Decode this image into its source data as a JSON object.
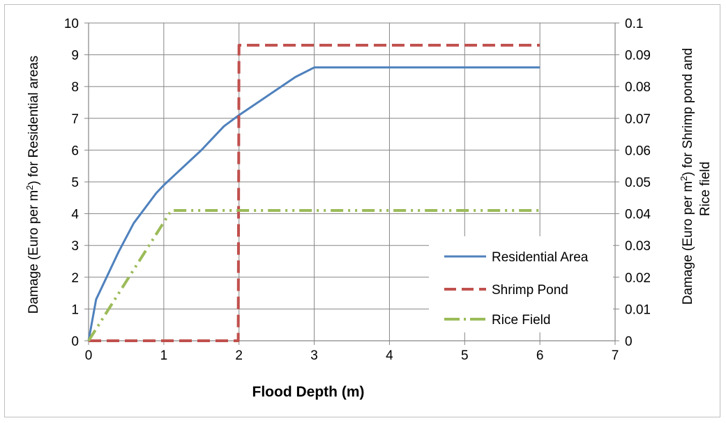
{
  "chart_data": {
    "type": "line",
    "xlabel": "Flood Depth (m)",
    "ylabel_left_parts": [
      "Damage (Euro per m",
      "2",
      ") for Residential areas"
    ],
    "ylabel_right_line1_parts": [
      "Damage (Euro per m",
      "2",
      ") for Shrimp pond and"
    ],
    "ylabel_right_line2": "Rice field",
    "xlim": [
      0,
      7
    ],
    "ylim_left": [
      0,
      10
    ],
    "ylim_right": [
      0,
      0.1
    ],
    "x_ticks": [
      0,
      1,
      2,
      3,
      4,
      5,
      6,
      7
    ],
    "y_left_ticks": [
      0,
      1,
      2,
      3,
      4,
      5,
      6,
      7,
      8,
      9,
      10
    ],
    "y_right_ticks": [
      "0",
      "0.01",
      "0.02",
      "0.03",
      "0.04",
      "0.05",
      "0.06",
      "0.07",
      "0.08",
      "0.09",
      "0.1"
    ],
    "grid": true,
    "legend_position": "bottom-right",
    "series": [
      {
        "name": "Residential Area",
        "axis": "left",
        "color": "#4f81bd",
        "style": "solid",
        "x": [
          0,
          0.1,
          0.4,
          0.6,
          0.9,
          1.0,
          1.5,
          1.8,
          2.0,
          2.5,
          2.75,
          3.0,
          6.0
        ],
        "y": [
          0,
          1.3,
          2.8,
          3.7,
          4.65,
          4.9,
          6.0,
          6.75,
          7.1,
          7.9,
          8.3,
          8.6,
          8.6
        ]
      },
      {
        "name": "Shrimp Pond",
        "axis": "right",
        "color": "#c0504d",
        "style": "dashed",
        "x": [
          0,
          1.99,
          2.0,
          6.0
        ],
        "y": [
          0,
          0,
          0.093,
          0.093
        ]
      },
      {
        "name": "Rice Field",
        "axis": "right",
        "color": "#9bbb59",
        "style": "dash-dot-dot",
        "x": [
          0,
          1.1,
          6.0
        ],
        "y": [
          0,
          0.041,
          0.041
        ]
      }
    ]
  }
}
